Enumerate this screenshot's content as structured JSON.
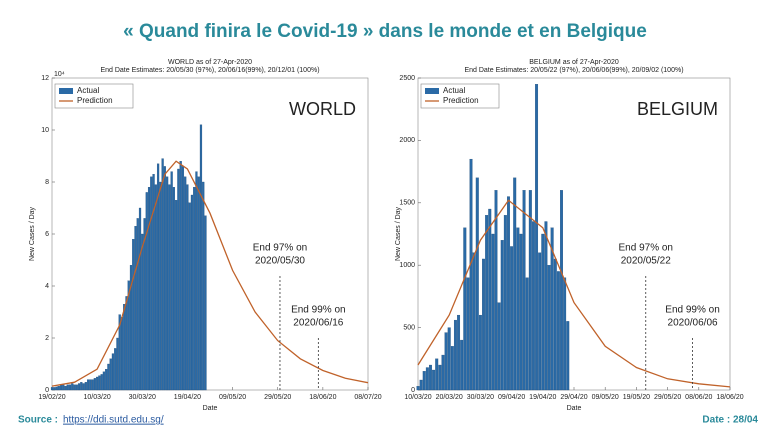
{
  "header": {
    "title": "« Quand finira le Covid-19 » dans le monde et en Belgique"
  },
  "footer": {
    "source_label": "Source :",
    "source_url": "https://ddi.sutd.edu.sg/",
    "date": "Date : 28/04"
  },
  "chart_data": [
    {
      "type": "bar",
      "title": "WORLD as of 27-Apr-2020",
      "subtitle": "End Date Estimates: 20/05/30 (97%), 20/06/16(99%), 20/12/01 (100%)",
      "label": "WORLD",
      "x_label": "Date",
      "y_label": "New Cases / Day",
      "y_multiplier": "10⁴",
      "xlim": [
        "19/02/20",
        "08/07/20"
      ],
      "xticks": [
        "19/02/20",
        "10/03/20",
        "30/03/20",
        "19/04/20",
        "09/05/20",
        "29/05/20",
        "18/06/20",
        "08/07/20"
      ],
      "ylim": [
        0,
        12
      ],
      "yticks": [
        0,
        2,
        4,
        6,
        8,
        10,
        12
      ],
      "legend": "upper-left",
      "series": [
        {
          "name": "Actual",
          "type": "bar",
          "color": "#2a6aa6",
          "x": [
            "19/02/20",
            "20/02/20",
            "21/02/20",
            "22/02/20",
            "23/02/20",
            "24/02/20",
            "25/02/20",
            "26/02/20",
            "27/02/20",
            "28/02/20",
            "29/02/20",
            "01/03/20",
            "02/03/20",
            "03/03/20",
            "04/03/20",
            "05/03/20",
            "06/03/20",
            "07/03/20",
            "08/03/20",
            "09/03/20",
            "10/03/20",
            "11/03/20",
            "12/03/20",
            "13/03/20",
            "14/03/20",
            "15/03/20",
            "16/03/20",
            "17/03/20",
            "18/03/20",
            "19/03/20",
            "20/03/20",
            "21/03/20",
            "22/03/20",
            "23/03/20",
            "24/03/20",
            "25/03/20",
            "26/03/20",
            "27/03/20",
            "28/03/20",
            "29/03/20",
            "30/03/20",
            "31/03/20",
            "01/04/20",
            "02/04/20",
            "03/04/20",
            "04/04/20",
            "05/04/20",
            "06/04/20",
            "07/04/20",
            "08/04/20",
            "09/04/20",
            "10/04/20",
            "11/04/20",
            "12/04/20",
            "13/04/20",
            "14/04/20",
            "15/04/20",
            "16/04/20",
            "17/04/20",
            "18/04/20",
            "19/04/20",
            "20/04/20",
            "21/04/20",
            "22/04/20",
            "23/04/20",
            "24/04/20",
            "25/04/20",
            "26/04/20",
            "27/04/20"
          ],
          "values": [
            0.1,
            0.1,
            0.12,
            0.15,
            0.2,
            0.2,
            0.15,
            0.2,
            0.2,
            0.25,
            0.2,
            0.2,
            0.25,
            0.3,
            0.25,
            0.3,
            0.4,
            0.4,
            0.4,
            0.45,
            0.5,
            0.55,
            0.6,
            0.7,
            0.8,
            1.0,
            1.2,
            1.4,
            1.6,
            2.0,
            2.9,
            2.8,
            3.3,
            3.6,
            4.2,
            4.8,
            5.8,
            6.3,
            6.6,
            7.0,
            6.0,
            6.6,
            7.6,
            7.8,
            8.2,
            8.3,
            7.9,
            8.7,
            8.0,
            8.9,
            8.6,
            8.2,
            7.9,
            8.4,
            7.8,
            7.3,
            8.5,
            8.8,
            8.6,
            8.2,
            7.9,
            7.2,
            7.5,
            7.8,
            8.4,
            8.2,
            10.2,
            8.0,
            6.7
          ]
        },
        {
          "name": "Prediction",
          "type": "line",
          "color": "#c0622a",
          "x": [
            "19/02/20",
            "29/02/20",
            "10/03/20",
            "20/03/20",
            "30/03/20",
            "09/04/20",
            "14/04/20",
            "19/04/20",
            "29/04/20",
            "09/05/20",
            "19/05/20",
            "29/05/20",
            "08/06/20",
            "18/06/20",
            "28/06/20",
            "08/07/20"
          ],
          "values": [
            0.15,
            0.3,
            0.8,
            2.5,
            5.5,
            8.3,
            8.8,
            8.5,
            6.8,
            4.6,
            3.0,
            1.9,
            1.2,
            0.75,
            0.45,
            0.28
          ]
        }
      ],
      "annotations": [
        {
          "lines": [
            "End 97% on",
            "2020/05/30"
          ]
        },
        {
          "lines": [
            "End 99% on",
            "2020/06/16"
          ]
        }
      ]
    },
    {
      "type": "bar",
      "title": "BELGIUM as of 27-Apr-2020",
      "subtitle": "End Date Estimates: 20/05/22 (97%), 20/06/06(99%), 20/09/02 (100%)",
      "label": "BELGIUM",
      "x_label": "Date",
      "y_label": "New Cases / Day",
      "xlim": [
        "10/03/20",
        "18/06/20"
      ],
      "xticks": [
        "10/03/20",
        "20/03/20",
        "30/03/20",
        "09/04/20",
        "19/04/20",
        "29/04/20",
        "09/05/20",
        "19/05/20",
        "29/05/20",
        "08/06/20",
        "18/06/20"
      ],
      "ylim": [
        0,
        2500
      ],
      "yticks": [
        0,
        500,
        1000,
        1500,
        2000,
        2500
      ],
      "legend": "upper-left",
      "series": [
        {
          "name": "Actual",
          "type": "bar",
          "color": "#2a6aa6",
          "x": [
            "10/03/20",
            "11/03/20",
            "12/03/20",
            "13/03/20",
            "14/03/20",
            "15/03/20",
            "16/03/20",
            "17/03/20",
            "18/03/20",
            "19/03/20",
            "20/03/20",
            "21/03/20",
            "22/03/20",
            "23/03/20",
            "24/03/20",
            "25/03/20",
            "26/03/20",
            "27/03/20",
            "28/03/20",
            "29/03/20",
            "30/03/20",
            "31/03/20",
            "01/04/20",
            "02/04/20",
            "03/04/20",
            "04/04/20",
            "05/04/20",
            "06/04/20",
            "07/04/20",
            "08/04/20",
            "09/04/20",
            "10/04/20",
            "11/04/20",
            "12/04/20",
            "13/04/20",
            "14/04/20",
            "15/04/20",
            "16/04/20",
            "17/04/20",
            "18/04/20",
            "19/04/20",
            "20/04/20",
            "21/04/20",
            "22/04/20",
            "23/04/20",
            "24/04/20",
            "25/04/20",
            "26/04/20",
            "27/04/20"
          ],
          "values": [
            30,
            80,
            150,
            180,
            200,
            160,
            250,
            200,
            280,
            460,
            500,
            350,
            560,
            600,
            400,
            1300,
            900,
            1850,
            1100,
            1700,
            600,
            1050,
            1400,
            1450,
            1250,
            1600,
            700,
            1200,
            1400,
            1550,
            1150,
            1700,
            1300,
            1250,
            1600,
            900,
            1600,
            1350,
            2450,
            1100,
            1250,
            1350,
            1000,
            1300,
            1050,
            950,
            1600,
            900,
            550
          ]
        },
        {
          "name": "Prediction",
          "type": "line",
          "color": "#c0622a",
          "x": [
            "10/03/20",
            "20/03/20",
            "30/03/20",
            "08/04/20",
            "19/04/20",
            "29/04/20",
            "09/05/20",
            "19/05/20",
            "29/05/20",
            "08/06/20",
            "18/06/20"
          ],
          "values": [
            200,
            600,
            1200,
            1520,
            1300,
            700,
            350,
            180,
            90,
            50,
            25
          ]
        }
      ],
      "annotations": [
        {
          "lines": [
            "End 97% on",
            "2020/05/22"
          ]
        },
        {
          "lines": [
            "End 99% on",
            "2020/06/06"
          ]
        }
      ]
    }
  ]
}
